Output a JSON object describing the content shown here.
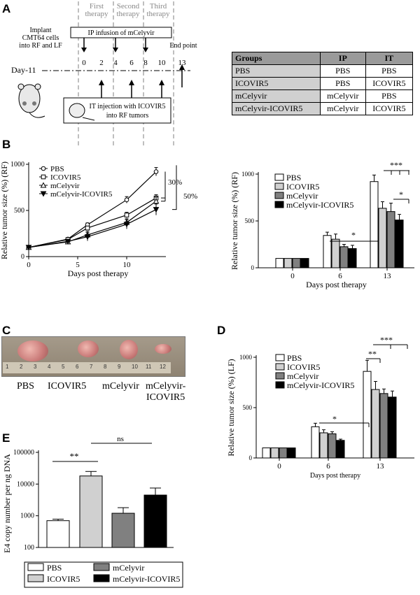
{
  "panel_labels": {
    "A": "A",
    "B": "B",
    "C": "C",
    "D": "D",
    "E": "E"
  },
  "panelA": {
    "implant": [
      "Implant",
      "CMT64 cells",
      "into RF and LF"
    ],
    "day_label": "Day-11",
    "phases": [
      "First",
      "therapy",
      "Second",
      "therapy",
      "Third",
      "therapy"
    ],
    "ip_box": "IP infusion of mCelyvir",
    "it_box": [
      "IT injection with ICOVIR5",
      "into RF tumors"
    ],
    "end_point": "End point",
    "days": [
      "0",
      "2",
      "4",
      "6",
      "8",
      "10",
      "13"
    ]
  },
  "groups_table": {
    "headers": [
      "Groups",
      "IP",
      "IT"
    ],
    "rows": [
      [
        "PBS",
        "PBS",
        "PBS"
      ],
      [
        "ICOVIR5",
        "PBS",
        "ICOVIR5"
      ],
      [
        "mCelyvir",
        "mCelyvir",
        "PBS"
      ],
      [
        "mCelyvir-ICOVIR5",
        "mCelyvir",
        "ICOVIR5"
      ]
    ]
  },
  "panelC": {
    "labels": [
      "PBS",
      "ICOVIR5",
      "mCelyvir",
      "mCelyvir-",
      "ICOVIR5"
    ],
    "ruler_numbers": [
      "1",
      "2",
      "3",
      "4",
      "5",
      "6",
      "7",
      "8",
      "9",
      "10",
      "11",
      "12"
    ]
  },
  "colors": {
    "PBS": "#ffffff",
    "ICOVIR5": "#d0d0d0",
    "mCelyvir": "#808080",
    "mCelyvir-ICOVIR5": "#000000"
  },
  "chart_data": [
    {
      "id": "B-left",
      "type": "line",
      "xlabel": "Days post therapy",
      "ylabel": "Relative tumor size (%) (RF)",
      "xlim": [
        0,
        14
      ],
      "ylim": [
        0,
        1000
      ],
      "xticks": [
        "0",
        "5",
        "10"
      ],
      "yticks": [
        "0",
        "500",
        "1000"
      ],
      "x": [
        0,
        4,
        6,
        10,
        13
      ],
      "series": [
        {
          "name": "PBS",
          "marker": "circle",
          "values": [
            100,
            190,
            345,
            615,
            920
          ],
          "err": [
            5,
            12,
            20,
            35,
            45
          ]
        },
        {
          "name": "ICOVIR5",
          "marker": "square",
          "values": [
            100,
            185,
            310,
            450,
            635
          ],
          "err": [
            5,
            12,
            20,
            30,
            35
          ]
        },
        {
          "name": "mCelyvir",
          "marker": "triangle",
          "values": [
            100,
            160,
            235,
            370,
            600
          ],
          "err": [
            5,
            12,
            40,
            40,
            45
          ]
        },
        {
          "name": "mCelyvir-ICOVIR5",
          "marker": "filled-triangle",
          "values": [
            100,
            165,
            215,
            350,
            510
          ],
          "err": [
            5,
            15,
            45,
            50,
            60
          ]
        }
      ],
      "annotations": [
        "30%",
        "50%"
      ]
    },
    {
      "id": "B-right",
      "type": "bar",
      "xlabel": "Days post therapy",
      "ylabel": "Relative tumor size (%) (RF)",
      "ylim": [
        0,
        1000
      ],
      "yticks": [
        "0",
        "500",
        "1000"
      ],
      "categories": [
        "0",
        "6",
        "13"
      ],
      "series": [
        {
          "name": "PBS",
          "values": [
            100,
            345,
            920
          ],
          "err": [
            0,
            35,
            70
          ]
        },
        {
          "name": "ICOVIR5",
          "values": [
            100,
            305,
            635
          ],
          "err": [
            0,
            55,
            70
          ]
        },
        {
          "name": "mCelyvir",
          "values": [
            100,
            225,
            600
          ],
          "err": [
            0,
            25,
            90
          ]
        },
        {
          "name": "mCelyvir-ICOVIR5",
          "values": [
            100,
            205,
            510
          ],
          "err": [
            0,
            35,
            60
          ]
        }
      ],
      "annotations": [
        "*",
        "***",
        "*"
      ]
    },
    {
      "id": "D",
      "type": "bar",
      "xlabel": "Days post therapy",
      "ylabel": "Relative tumor size (%) (LF)",
      "ylim": [
        0,
        1000
      ],
      "yticks": [
        "0",
        "500",
        "1000"
      ],
      "categories": [
        "0",
        "6",
        "13"
      ],
      "series": [
        {
          "name": "PBS",
          "values": [
            100,
            310,
            860
          ],
          "err": [
            0,
            35,
            110
          ]
        },
        {
          "name": "ICOVIR5",
          "values": [
            100,
            250,
            680
          ],
          "err": [
            0,
            30,
            80
          ]
        },
        {
          "name": "mCelyvir",
          "values": [
            100,
            240,
            640
          ],
          "err": [
            0,
            20,
            45
          ]
        },
        {
          "name": "mCelyvir-ICOVIR5",
          "values": [
            100,
            175,
            605
          ],
          "err": [
            0,
            12,
            60
          ]
        }
      ],
      "annotations": [
        "*",
        "**",
        "***"
      ]
    },
    {
      "id": "E",
      "type": "bar",
      "scale": "log",
      "ylabel": "E4 copy number per ng DNA",
      "ylim": [
        100,
        100000
      ],
      "yticks": [
        "100",
        "1000",
        "10000",
        "100000"
      ],
      "categories": [
        "PBS",
        "ICOVIR5",
        "mCelyvir",
        "mCelyvir-ICOVIR5"
      ],
      "values": [
        700,
        18000,
        1200,
        4500
      ],
      "err_upper": [
        780,
        25000,
        1800,
        7500
      ],
      "annotations": [
        "**",
        "ns"
      ]
    }
  ]
}
